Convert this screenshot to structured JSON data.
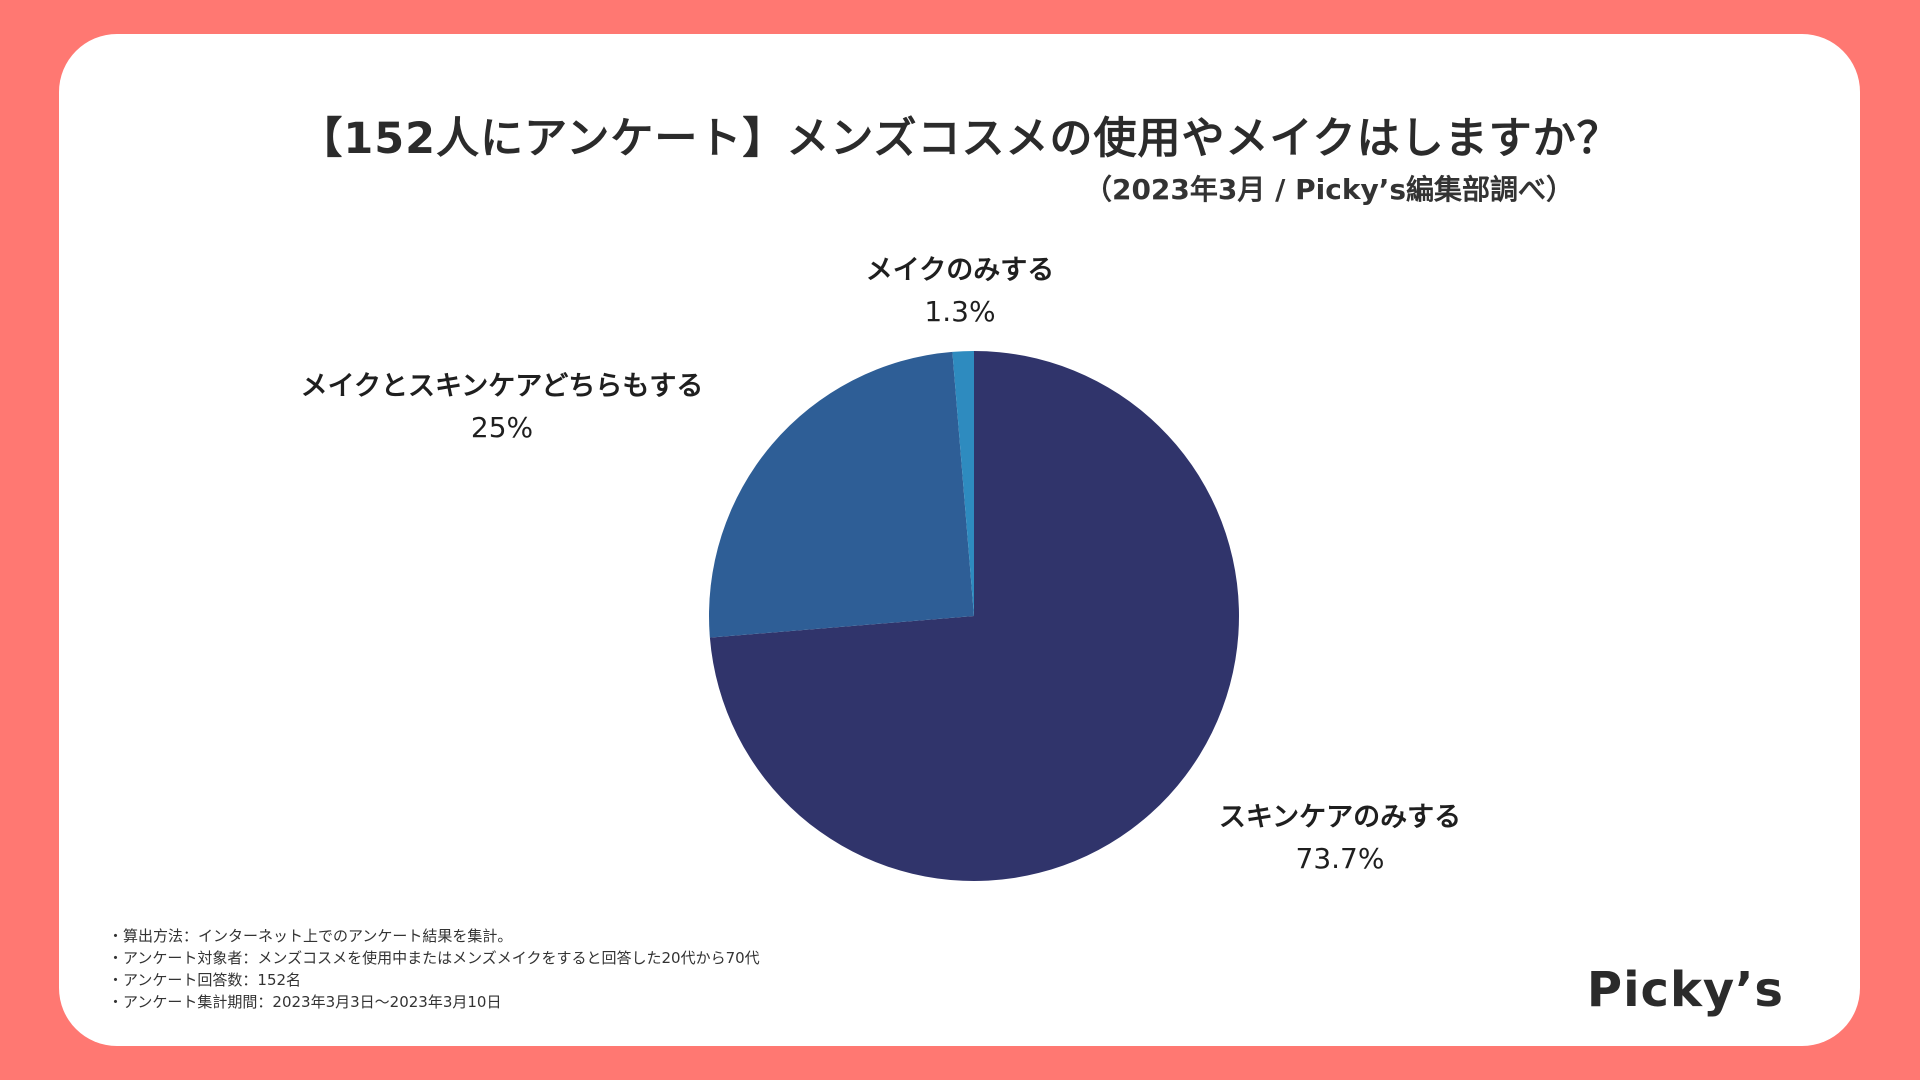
{
  "title": "【152人にアンケート】メンズコスメの使用やメイクはしますか？",
  "subtitle": "（2023年3月 / Picky’s編集部調べ）",
  "colors": {
    "background": "#ff7872",
    "card": "#ffffff"
  },
  "chart_data": {
    "type": "pie",
    "title": "【152人にアンケート】メンズコスメの使用やメイクはしますか？",
    "subtitle": "（2023年3月 / Picky’s編集部調べ）",
    "legend": "none",
    "slices": [
      {
        "label": "スキンケアのみする",
        "value": 73.7,
        "value_label": "73.7%",
        "color": "#30346b"
      },
      {
        "label": "メイクとスキンケアどちらもする",
        "value": 25,
        "value_label": "25%",
        "color": "#2e5e96"
      },
      {
        "label": "メイクのみする",
        "value": 1.3,
        "value_label": "1.3%",
        "color": "#2e8bbf"
      }
    ]
  },
  "notes": [
    "・算出方法：インターネット上でのアンケート結果を集計。",
    "・アンケート対象者：メンズコスメを使用中またはメンズメイクをすると回答した20代から70代",
    "・アンケート回答数：152名",
    "・アンケート集計期間：2023年3月3日〜2023年3月10日"
  ],
  "logo_text": "Picky’s"
}
